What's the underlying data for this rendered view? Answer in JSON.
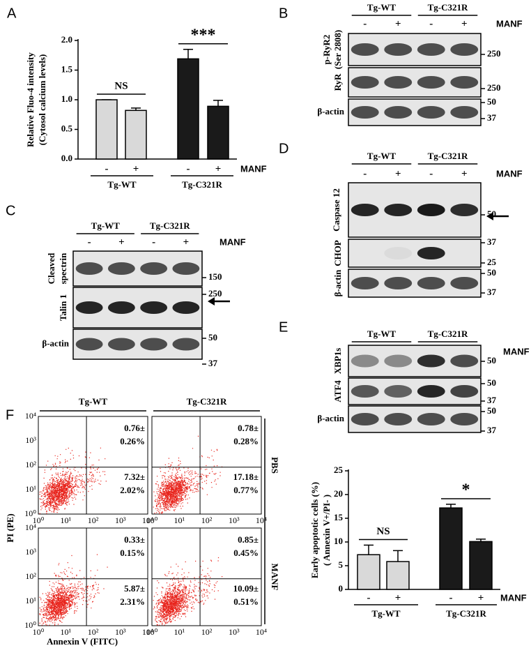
{
  "chart_data": [
    {
      "type": "bar",
      "letter": "A",
      "ylabel": [
        "Relative Fluo-4 intensity",
        "(Cytosol calcium levels)"
      ],
      "categories": [
        "-",
        "+",
        "-",
        "+"
      ],
      "values": [
        1.0,
        0.82,
        1.69,
        0.89
      ],
      "errors": [
        0.0,
        0.04,
        0.16,
        0.1
      ],
      "colors": [
        "#d9d9d9",
        "#d9d9d9",
        "#1a1a1a",
        "#1a1a1a"
      ],
      "groups": [
        "Tg-WT",
        "Tg-C321R"
      ],
      "treatment": "MANF",
      "annotations": [
        "NS",
        "***"
      ],
      "ylim": [
        0,
        2
      ],
      "yticks": [
        {
          "value": 0,
          "label": "0.0"
        },
        0.5,
        {
          "value": 1,
          "label": "1.0"
        },
        1.5,
        {
          "value": 2,
          "label": "2.0"
        }
      ]
    },
    {
      "type": "bar",
      "ylabel": [
        "Early apoptotic cells (%)",
        "( Annexin V+/PI- )"
      ],
      "categories": [
        "-",
        "+",
        "-",
        "+"
      ],
      "values": [
        7.32,
        5.87,
        17.18,
        10.09
      ],
      "errors": [
        2.02,
        2.31,
        0.77,
        0.51
      ],
      "colors": [
        "#d9d9d9",
        "#d9d9d9",
        "#1a1a1a",
        "#1a1a1a"
      ],
      "groups": [
        "Tg-WT",
        "Tg-C321R"
      ],
      "treatment": "MANF",
      "annotations": [
        "NS",
        "*"
      ],
      "ylim": [
        0,
        25
      ],
      "yticks": [
        0,
        5,
        10,
        15,
        20,
        25
      ]
    }
  ],
  "blots": [
    {
      "letter": "B",
      "groups": [
        "Tg-WT",
        "Tg-C321R"
      ],
      "signs": [
        "-",
        "+",
        "-",
        "+"
      ],
      "treatment": "MANF",
      "rows": [
        {
          "label": [
            "p-RyR2",
            "(Ser 2808)"
          ],
          "markers": [
            250
          ]
        },
        {
          "label": [
            "RyR"
          ],
          "markers": [
            250
          ]
        },
        {
          "label": [
            "β-actin"
          ],
          "markers": [
            50,
            37
          ]
        }
      ]
    },
    {
      "letter": "D",
      "groups": [
        "Tg-WT",
        "Tg-C321R"
      ],
      "signs": [
        "-",
        "+",
        "-",
        "+"
      ],
      "treatment": "MANF",
      "rows": [
        {
          "label": [
            "Caspase 12"
          ],
          "markers": [
            50
          ]
        },
        {
          "label": [
            "CHOP"
          ],
          "markers": [
            37,
            25
          ]
        },
        {
          "label": [
            "β-actin"
          ],
          "markers": [
            50,
            37
          ]
        }
      ]
    },
    {
      "letter": "E",
      "groups": [
        "Tg-WT",
        "Tg-C321R"
      ],
      "signs": [
        "-",
        "+",
        "-",
        "+"
      ],
      "treatment": "MANF",
      "rows": [
        {
          "label": [
            "XBP1s"
          ],
          "markers": [
            50
          ]
        },
        {
          "label": [
            "ATF4"
          ],
          "markers": [
            50,
            37
          ]
        },
        {
          "label": [
            "β-actin"
          ],
          "markers": [
            50,
            37
          ]
        }
      ]
    },
    {
      "letter": "C",
      "groups": [
        "Tg-WT",
        "Tg-C321R"
      ],
      "signs": [
        "-",
        "+",
        "-",
        "+"
      ],
      "treatment": "MANF",
      "rows": [
        {
          "label": [
            "Cleaved",
            "spectrin"
          ],
          "markers": [
            150
          ]
        },
        {
          "label": [
            "Talin 1"
          ],
          "markers": [
            250
          ]
        },
        {
          "label": [
            "β-actin"
          ],
          "markers": [
            50,
            37
          ]
        }
      ]
    }
  ],
  "flow": {
    "letter": "F",
    "columns": [
      "Tg-WT",
      "Tg-C321R"
    ],
    "rows": [
      "PBS",
      "MANF"
    ],
    "ticks": [
      "10⁰",
      "10¹",
      "10²",
      "10³",
      "10⁴"
    ],
    "x_label": "Annexin V (FITC)",
    "y_label": "PI (PE)",
    "plots": [
      {
        "upper": [
          "0.76±",
          "0.26%"
        ],
        "lower": [
          "7.32±",
          "2.02%"
        ]
      },
      {
        "upper": [
          "0.78±",
          "0.28%"
        ],
        "lower": [
          "17.18±",
          "0.77%"
        ]
      },
      {
        "upper": [
          "0.33±",
          "0.15%"
        ],
        "lower": [
          "5.87±",
          "2.31%"
        ]
      },
      {
        "upper": [
          "0.85±",
          "0.45%"
        ],
        "lower": [
          "10.09±",
          "0.51%"
        ]
      }
    ]
  }
}
